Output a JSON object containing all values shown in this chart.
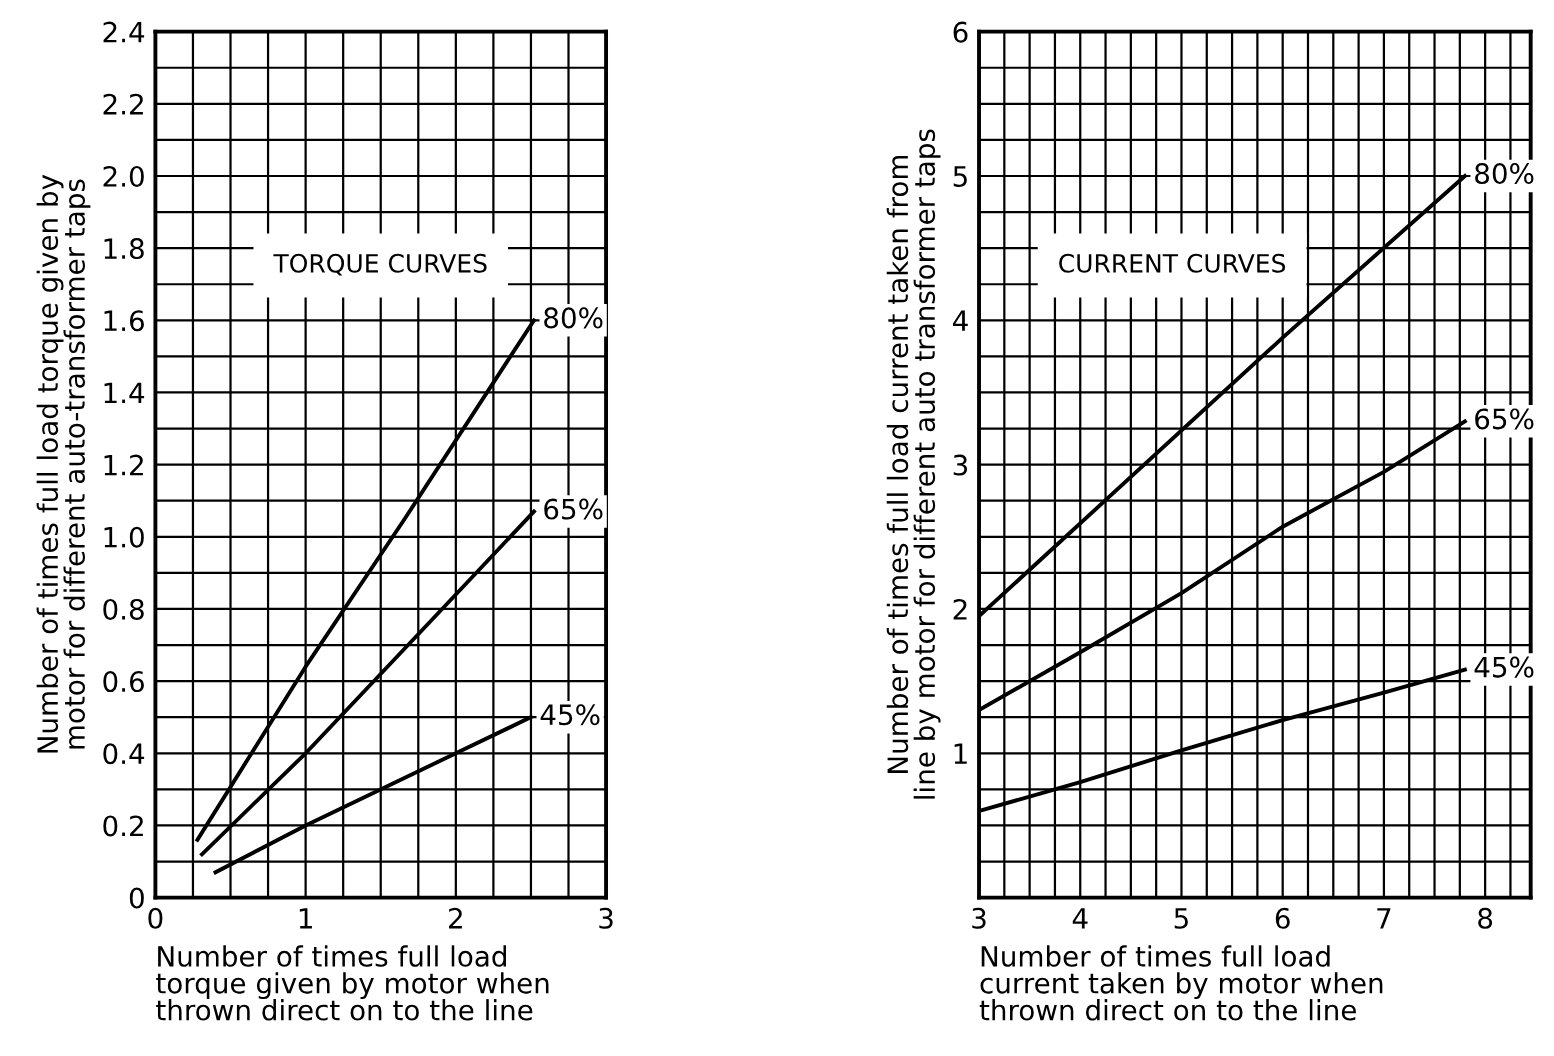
{
  "chart_data": [
    {
      "type": "line",
      "xlabel": "Number of times full load\ntorque given by motor when\nthrown direct on to the line",
      "ylabel": "Number of times full load torque given by\nmotor for different auto-transformer taps",
      "annotations": [
        "TORQUE CURVES"
      ],
      "series": [
        {
          "name": "80%",
          "color": "#000000",
          "x": [
            0.28,
            1,
            1.66,
            2.52
          ],
          "values": [
            0.16,
            0.64,
            1.05,
            1.6
          ]
        },
        {
          "name": "65%",
          "color": "#000000",
          "x": [
            0.31,
            1,
            2,
            2.52
          ],
          "values": [
            0.12,
            0.4,
            0.84,
            1.07
          ]
        },
        {
          "name": "45%",
          "color": "#000000",
          "x": [
            0.4,
            1,
            2,
            2.5
          ],
          "values": [
            0.07,
            0.2,
            0.4,
            0.5
          ]
        }
      ],
      "xlim": [
        0,
        3
      ],
      "ylim": [
        0,
        2.4
      ],
      "xticks": [
        0,
        {
          "value": 0.25,
          "label": null
        },
        {
          "value": 0.5,
          "label": null
        },
        {
          "value": 0.75,
          "label": null
        },
        1,
        {
          "value": 1.25,
          "label": null
        },
        {
          "value": 1.5,
          "label": null
        },
        {
          "value": 1.75,
          "label": null
        },
        2,
        {
          "value": 2.25,
          "label": null
        },
        {
          "value": 2.5,
          "label": null
        },
        {
          "value": 2.75,
          "label": null
        },
        3
      ],
      "yticks": [
        0,
        {
          "value": 0.1,
          "label": null
        },
        0.2,
        {
          "value": 0.3,
          "label": null
        },
        0.4,
        {
          "value": 0.5,
          "label": null
        },
        0.6,
        {
          "value": 0.7,
          "label": null
        },
        0.8,
        {
          "value": 0.9,
          "label": null
        },
        {
          "value": 1.0,
          "label": "1.0"
        },
        {
          "value": 1.1,
          "label": null
        },
        1.2,
        {
          "value": 1.3,
          "label": null
        },
        1.4,
        {
          "value": 1.5,
          "label": null
        },
        1.6,
        {
          "value": 1.7,
          "label": null
        },
        1.8,
        {
          "value": 1.9,
          "label": null
        },
        {
          "value": 2.0,
          "label": "2.0"
        },
        {
          "value": 2.1,
          "label": null
        },
        2.2,
        {
          "value": 2.3,
          "label": null
        },
        2.4
      ],
      "grid": true,
      "line_style": "solid",
      "marker": "none"
    },
    {
      "type": "line",
      "xlabel": "Number of times full load\ncurrent taken by motor when\nthrown direct on to the line",
      "ylabel": "Number of times full load current taken from\nline by motor for different auto transformer taps",
      "annotations": [
        "CURRENT CURVES"
      ],
      "series": [
        {
          "name": "80%",
          "color": "#000000",
          "x": [
            3,
            6,
            7.8
          ],
          "values": [
            1.95,
            3.88,
            5.0
          ]
        },
        {
          "name": "65%",
          "color": "#000000",
          "x": [
            3,
            4,
            5,
            6,
            7,
            7.8
          ],
          "values": [
            1.3,
            1.7,
            2.11,
            2.57,
            2.95,
            3.3
          ]
        },
        {
          "name": "45%",
          "color": "#000000",
          "x": [
            3,
            4,
            5,
            6,
            7,
            7.8
          ],
          "values": [
            0.6,
            0.8,
            1.02,
            1.23,
            1.42,
            1.58
          ]
        }
      ],
      "xlim": [
        3,
        8.45
      ],
      "ylim": [
        0,
        6
      ],
      "xticks": [
        3,
        {
          "value": 3.25,
          "label": null
        },
        {
          "value": 3.5,
          "label": null
        },
        {
          "value": 3.75,
          "label": null
        },
        4,
        {
          "value": 4.25,
          "label": null
        },
        {
          "value": 4.5,
          "label": null
        },
        {
          "value": 4.75,
          "label": null
        },
        5,
        {
          "value": 5.25,
          "label": null
        },
        {
          "value": 5.5,
          "label": null
        },
        {
          "value": 5.75,
          "label": null
        },
        6,
        {
          "value": 6.25,
          "label": null
        },
        {
          "value": 6.5,
          "label": null
        },
        {
          "value": 6.75,
          "label": null
        },
        7,
        {
          "value": 7.25,
          "label": null
        },
        {
          "value": 7.5,
          "label": null
        },
        {
          "value": 7.75,
          "label": null
        },
        8,
        {
          "value": 8.25,
          "label": null
        }
      ],
      "yticks": [
        {
          "value": 0,
          "label": null
        },
        {
          "value": 0.25,
          "label": null
        },
        {
          "value": 0.5,
          "label": null
        },
        {
          "value": 0.75,
          "label": null
        },
        1,
        {
          "value": 1.25,
          "label": null
        },
        {
          "value": 1.5,
          "label": null
        },
        {
          "value": 1.75,
          "label": null
        },
        2,
        {
          "value": 2.25,
          "label": null
        },
        {
          "value": 2.5,
          "label": null
        },
        {
          "value": 2.75,
          "label": null
        },
        3,
        {
          "value": 3.25,
          "label": null
        },
        {
          "value": 3.5,
          "label": null
        },
        {
          "value": 3.75,
          "label": null
        },
        4,
        {
          "value": 4.25,
          "label": null
        },
        {
          "value": 4.5,
          "label": null
        },
        {
          "value": 4.75,
          "label": null
        },
        5,
        {
          "value": 5.25,
          "label": null
        },
        {
          "value": 5.5,
          "label": null
        },
        {
          "value": 5.75,
          "label": null
        },
        6
      ],
      "grid": true,
      "line_style": "solid",
      "marker": "none"
    }
  ]
}
